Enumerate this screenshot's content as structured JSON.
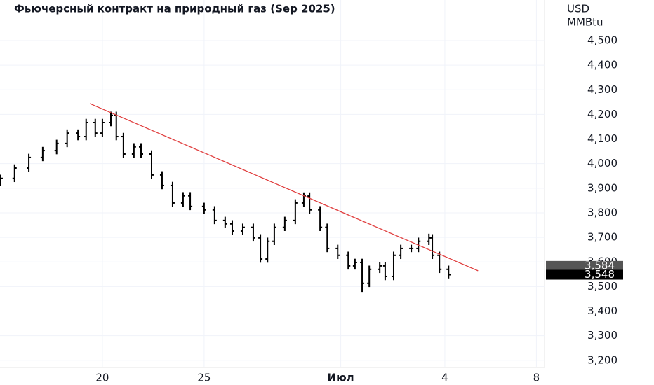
{
  "chart_data": {
    "type": "ohlc",
    "title": "Фьючерсный контракт на природный газ (Sep 2025)",
    "y_axis_label": [
      "USD",
      "MMBtu"
    ],
    "color": "#000000",
    "grid": true,
    "xlim": [
      -3.02,
      13.04
    ],
    "ylim": [
      3171,
      4665
    ],
    "xticks": [
      {
        "value": 0,
        "label": "20"
      },
      {
        "value": 3,
        "label": "25"
      },
      {
        "value": 7.03,
        "label": "Июл"
      },
      {
        "value": 10.1,
        "label": "4"
      },
      {
        "value": 12.8,
        "label": "8"
      }
    ],
    "yticks": [
      {
        "value": 3200,
        "label": "3,200"
      },
      {
        "value": 3300,
        "label": "3,300"
      },
      {
        "value": 3400,
        "label": "3,400"
      },
      {
        "value": 3500,
        "label": "3,500"
      },
      {
        "value": 3600,
        "label": "3,600"
      },
      {
        "value": 3700,
        "label": "3,700"
      },
      {
        "value": 3800,
        "label": "3,800"
      },
      {
        "value": 3900,
        "label": "3,900"
      },
      {
        "value": 4000,
        "label": "4,000"
      },
      {
        "value": 4100,
        "label": "4,100"
      },
      {
        "value": 4200,
        "label": "4,200"
      },
      {
        "value": 4300,
        "label": "4,300"
      },
      {
        "value": 4400,
        "label": "4,400"
      },
      {
        "value": 4500,
        "label": "4,500"
      }
    ],
    "x": [
      -3.0,
      -2.59,
      -2.17,
      -1.76,
      -1.35,
      -1.04,
      -0.72,
      -0.48,
      -0.21,
      0,
      0.25,
      0.41,
      0.62,
      0.93,
      1.14,
      1.45,
      1.76,
      2.07,
      2.38,
      2.59,
      3.0,
      3.31,
      3.62,
      3.83,
      4.14,
      4.45,
      4.66,
      4.87,
      5.07,
      5.38,
      5.69,
      5.94,
      6.11,
      6.42,
      6.63,
      6.94,
      7.25,
      7.45,
      7.66,
      7.87,
      8.18,
      8.34,
      8.59,
      8.8,
      9.11,
      9.32,
      9.63,
      9.73,
      9.94,
      10.21
    ],
    "open": [
      3925,
      3940,
      3982,
      4025,
      4053,
      4082,
      4124,
      4110,
      4167,
      4124,
      4167,
      4196,
      4110,
      4039,
      4068,
      4039,
      3954,
      3911,
      3840,
      3869,
      3826,
      3812,
      3769,
      3755,
      3726,
      3741,
      3698,
      3612,
      3684,
      3741,
      3769,
      3840,
      3868,
      3812,
      3741,
      3655,
      3627,
      3584,
      3598,
      3513,
      3570,
      3584,
      3541,
      3627,
      3655,
      3655,
      3684,
      3698,
      3627,
      3570
    ],
    "high": [
      3955,
      3997,
      4040,
      4068,
      4097,
      4139,
      4139,
      4182,
      4182,
      4182,
      4211,
      4211,
      4125,
      4083,
      4083,
      4054,
      3969,
      3926,
      3884,
      3884,
      3841,
      3827,
      3784,
      3770,
      3756,
      3756,
      3713,
      3699,
      3756,
      3784,
      3855,
      3883,
      3883,
      3827,
      3756,
      3670,
      3642,
      3613,
      3613,
      3585,
      3599,
      3599,
      3642,
      3670,
      3670,
      3699,
      3715,
      3713,
      3642,
      3585
    ],
    "low": [
      3910,
      3925,
      3967,
      4010,
      4038,
      4067,
      4095,
      4095,
      4109,
      4109,
      4152,
      4095,
      4024,
      4024,
      4024,
      3939,
      3896,
      3825,
      3825,
      3811,
      3797,
      3754,
      3740,
      3711,
      3711,
      3683,
      3597,
      3597,
      3669,
      3726,
      3754,
      3825,
      3797,
      3726,
      3640,
      3612,
      3569,
      3569,
      3478,
      3498,
      3555,
      3526,
      3526,
      3612,
      3640,
      3640,
      3669,
      3612,
      3555,
      3533
    ],
    "close": [
      3940,
      3982,
      4025,
      4053,
      4082,
      4124,
      4110,
      4167,
      4124,
      4167,
      4196,
      4110,
      4039,
      4068,
      4039,
      3954,
      3911,
      3840,
      3869,
      3826,
      3812,
      3769,
      3755,
      3726,
      3741,
      3698,
      3612,
      3684,
      3741,
      3769,
      3840,
      3868,
      3812,
      3741,
      3655,
      3627,
      3584,
      3598,
      3513,
      3570,
      3584,
      3541,
      3627,
      3655,
      3655,
      3684,
      3698,
      3627,
      3570,
      3548
    ],
    "trendline": {
      "x": [
        -0.37,
        11.08
      ],
      "values": [
        4244,
        3564
      ],
      "color": "#e03e3e"
    },
    "price_labels": [
      {
        "value": 3584,
        "label": "3,584",
        "color": "#555555"
      },
      {
        "value": 3548,
        "label": "3,548",
        "color": "#000000"
      }
    ]
  }
}
